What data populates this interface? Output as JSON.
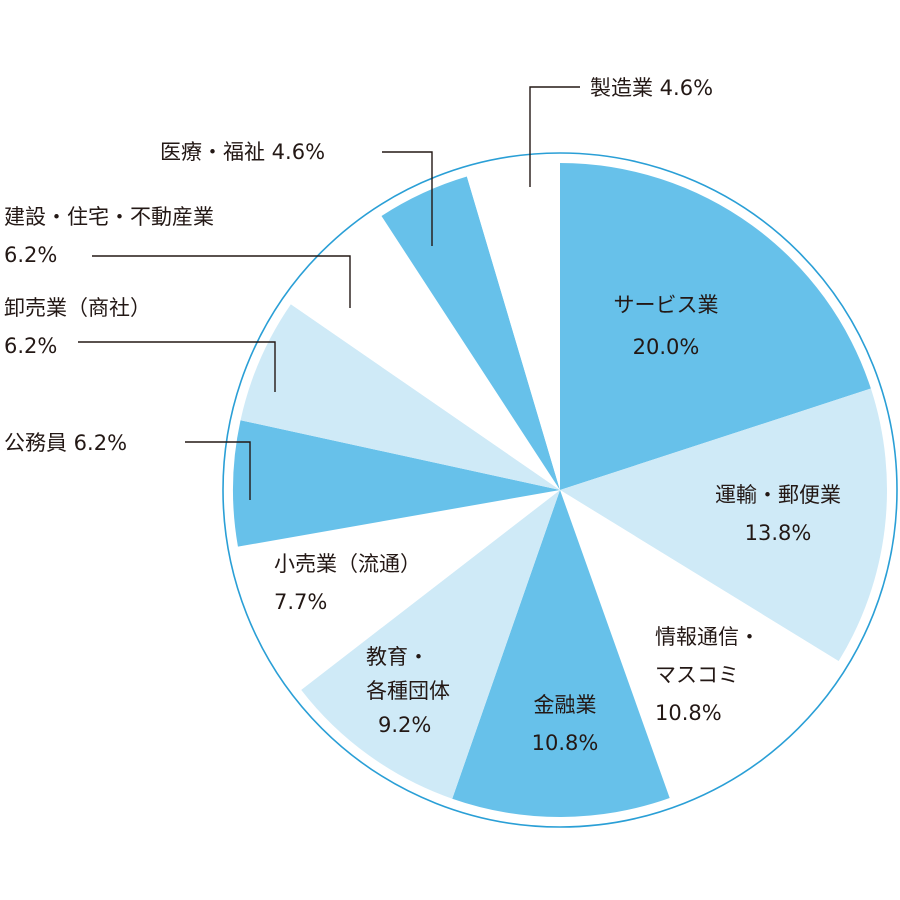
{
  "chart_data": {
    "type": "pie",
    "colors": {
      "dark": "#67c1ea",
      "light": "#cfeaf7",
      "white": "#ffffff",
      "outline": "#2a9fd6",
      "text": "#231815"
    },
    "slices": [
      {
        "category": "サービス業",
        "value": 20.0,
        "value_label": "20.0%",
        "fill": "dark",
        "lines": [
          "サービス業",
          "20.0%"
        ]
      },
      {
        "category": "運輸・郵便業",
        "value": 13.8,
        "value_label": "13.8%",
        "fill": "light",
        "lines": [
          "運輸・郵便業",
          "13.8%"
        ]
      },
      {
        "category": "情報通信・マスコミ",
        "value": 10.8,
        "value_label": "10.8%",
        "fill": "white",
        "lines": [
          "情報通信・",
          "マスコミ",
          "10.8%"
        ]
      },
      {
        "category": "金融業",
        "value": 10.8,
        "value_label": "10.8%",
        "fill": "dark",
        "lines": [
          "金融業",
          "10.8%"
        ]
      },
      {
        "category": "教育・各種団体",
        "value": 9.2,
        "value_label": "9.2%",
        "fill": "light",
        "lines": [
          "教育・",
          "各種団体",
          "9.2%"
        ]
      },
      {
        "category": "小売業（流通）",
        "value": 7.7,
        "value_label": "7.7%",
        "fill": "white",
        "lines": [
          "小売業（流通）",
          "7.7%"
        ]
      },
      {
        "category": "公務員",
        "value": 6.2,
        "value_label": "6.2%",
        "fill": "dark",
        "lines": [
          "公務員 6.2%"
        ]
      },
      {
        "category": "卸売業（商社）",
        "value": 6.2,
        "value_label": "6.2%",
        "fill": "light",
        "lines": [
          "卸売業（商社）",
          "6.2%"
        ]
      },
      {
        "category": "建設・住宅・不動産業",
        "value": 6.2,
        "value_label": "6.2%",
        "fill": "white",
        "lines": [
          "建設・住宅・不動産業",
          "6.2%"
        ]
      },
      {
        "category": "医療・福祉",
        "value": 4.6,
        "value_label": "4.6%",
        "fill": "dark",
        "lines": [
          "医療・福祉 4.6%"
        ]
      },
      {
        "category": "製造業",
        "value": 4.6,
        "value_label": "4.6%",
        "fill": "white",
        "lines": [
          "製造業 4.6%"
        ]
      }
    ]
  }
}
